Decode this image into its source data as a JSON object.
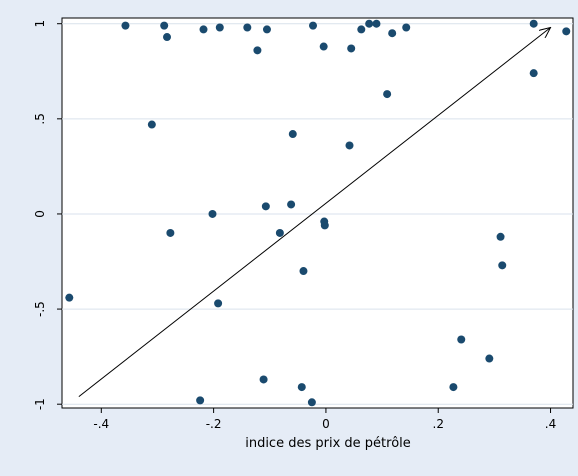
{
  "chart_data": {
    "type": "scatter",
    "xlabel": "indice des prix de pétrôle",
    "ylabel": "",
    "xlim": [
      -0.47,
      0.44
    ],
    "ylim": [
      -1.02,
      1.03
    ],
    "x_ticks": [
      -0.4,
      -0.2,
      0,
      0.2,
      0.4
    ],
    "x_tick_labels": [
      "-.4",
      "-.2",
      "0",
      ".2",
      ".4"
    ],
    "y_ticks": [
      -1,
      -0.5,
      0,
      0.5,
      1
    ],
    "y_tick_labels": [
      "-1",
      "-.5",
      "0",
      ".5",
      "1"
    ],
    "grid": "horizontal",
    "colors": {
      "background": "#e5ecf6",
      "plot": "#ffffff",
      "marker": "#1a4a6e",
      "grid": "#d9e2ec",
      "arrow": "#000000"
    },
    "arrow": {
      "from": [
        -0.44,
        -0.96
      ],
      "to": [
        0.4,
        0.98
      ]
    },
    "points": [
      [
        -0.457,
        -0.44
      ],
      [
        -0.357,
        0.99
      ],
      [
        -0.288,
        0.99
      ],
      [
        -0.283,
        0.93
      ],
      [
        -0.31,
        0.47
      ],
      [
        -0.277,
        -0.1
      ],
      [
        -0.218,
        0.97
      ],
      [
        -0.189,
        0.98
      ],
      [
        -0.202,
        0.0
      ],
      [
        -0.192,
        -0.47
      ],
      [
        -0.224,
        -0.98
      ],
      [
        -0.14,
        0.98
      ],
      [
        -0.122,
        0.86
      ],
      [
        -0.105,
        0.97
      ],
      [
        -0.107,
        0.04
      ],
      [
        -0.111,
        -0.87
      ],
      [
        -0.082,
        -0.1
      ],
      [
        -0.059,
        0.42
      ],
      [
        -0.062,
        0.05
      ],
      [
        -0.043,
        -0.91
      ],
      [
        -0.04,
        -0.3
      ],
      [
        -0.023,
        0.99
      ],
      [
        -0.025,
        -0.99
      ],
      [
        -0.004,
        0.88
      ],
      [
        -0.003,
        -0.04
      ],
      [
        -0.002,
        -0.06
      ],
      [
        0.042,
        0.36
      ],
      [
        0.045,
        0.87
      ],
      [
        0.063,
        0.97
      ],
      [
        0.077,
        1.0
      ],
      [
        0.09,
        1.0
      ],
      [
        0.109,
        0.63
      ],
      [
        0.118,
        0.95
      ],
      [
        0.143,
        0.98
      ],
      [
        0.227,
        -0.91
      ],
      [
        0.241,
        -0.66
      ],
      [
        0.291,
        -0.76
      ],
      [
        0.311,
        -0.12
      ],
      [
        0.314,
        -0.27
      ],
      [
        0.37,
        1.0
      ],
      [
        0.37,
        0.74
      ],
      [
        0.428,
        0.96
      ]
    ]
  }
}
